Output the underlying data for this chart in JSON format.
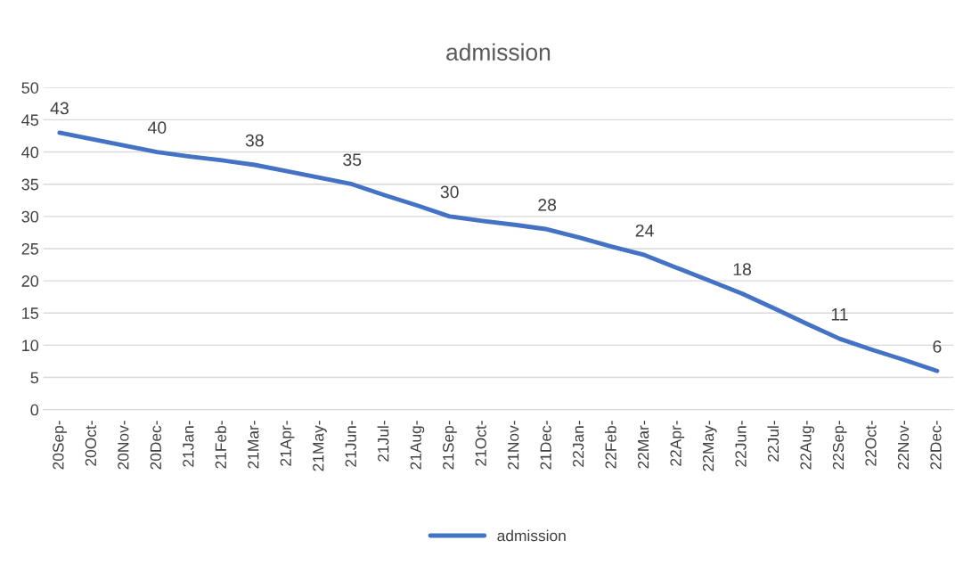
{
  "chart_data": {
    "type": "line",
    "title": "admission",
    "categories": [
      "20Sep-",
      "20Oct-",
      "20Nov-",
      "20Dec-",
      "21Jan-",
      "21Feb-",
      "21Mar-",
      "21Apr-",
      "21May-",
      "21Jun-",
      "21Jul-",
      "21Aug-",
      "21Sep-",
      "21Oct-",
      "21Nov-",
      "21Dec-",
      "22Jan-",
      "22Feb-",
      "22Mar-",
      "22Apr-",
      "22May-",
      "22Jun-",
      "22Jul-",
      "22Aug-",
      "22Sep-",
      "22Oct-",
      "22Nov-",
      "22Dec-"
    ],
    "series": [
      {
        "name": "admission",
        "color": "#4472c4",
        "values": [
          43,
          42,
          41,
          40,
          39.3,
          38.7,
          38,
          37,
          36,
          35,
          33.3,
          31.7,
          30,
          29.3,
          28.7,
          28,
          26.7,
          25.3,
          24,
          22,
          20,
          18,
          15.7,
          13.3,
          11,
          9.3,
          7.7,
          6
        ],
        "value_labels": [
          "43",
          null,
          null,
          "40",
          null,
          null,
          "38",
          null,
          null,
          "35",
          null,
          null,
          "30",
          null,
          null,
          "28",
          null,
          null,
          "24",
          null,
          null,
          "18",
          null,
          null,
          "11",
          null,
          null,
          "6"
        ]
      }
    ],
    "ylim": [
      0,
      50
    ],
    "yticks": [
      0,
      5,
      10,
      15,
      20,
      25,
      30,
      35,
      40,
      45,
      50
    ],
    "grid": "y",
    "legend": "bottom",
    "marker": "none",
    "line_style": "solid"
  }
}
